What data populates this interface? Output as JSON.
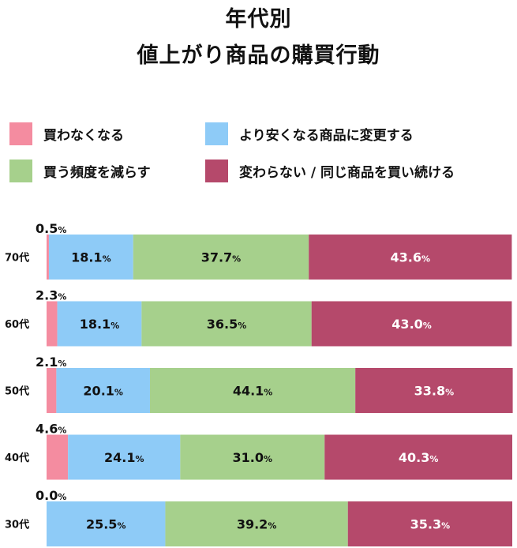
{
  "chart_data": {
    "type": "bar",
    "orientation": "horizontal",
    "stacked": true,
    "normalized": true,
    "title_lines": [
      "年代別",
      "値上がり商品の購買行動"
    ],
    "categories": [
      "70代",
      "60代",
      "50代",
      "40代",
      "30代"
    ],
    "unit": "%",
    "xlim": [
      0,
      100
    ],
    "grid": false,
    "legend_position": "top",
    "series": [
      {
        "name": "買わなくなる",
        "color": "#f48ca0",
        "values": [
          0.5,
          2.3,
          2.1,
          4.6,
          0.0
        ],
        "labels": [
          "0.5",
          "2.3",
          "2.1",
          "4.6",
          "0.0"
        ]
      },
      {
        "name": "より安くなる商品に変更する",
        "color": "#8ecbf7",
        "values": [
          18.1,
          18.1,
          20.1,
          24.1,
          25.5
        ],
        "labels": [
          "18.1",
          "18.1",
          "20.1",
          "24.1",
          "25.5"
        ]
      },
      {
        "name": "買う頻度を減らす",
        "color": "#a6d08c",
        "values": [
          37.7,
          36.5,
          44.1,
          31.0,
          39.2
        ],
        "labels": [
          "37.7",
          "36.5",
          "44.1",
          "31.0",
          "39.2"
        ]
      },
      {
        "name": "変わらない / 同じ商品を買い続ける",
        "color": "#b5496b",
        "values": [
          43.6,
          43.0,
          33.8,
          40.3,
          35.3
        ],
        "labels": [
          "43.6",
          "43.0",
          "33.8",
          "40.3",
          "35.3"
        ]
      }
    ]
  }
}
